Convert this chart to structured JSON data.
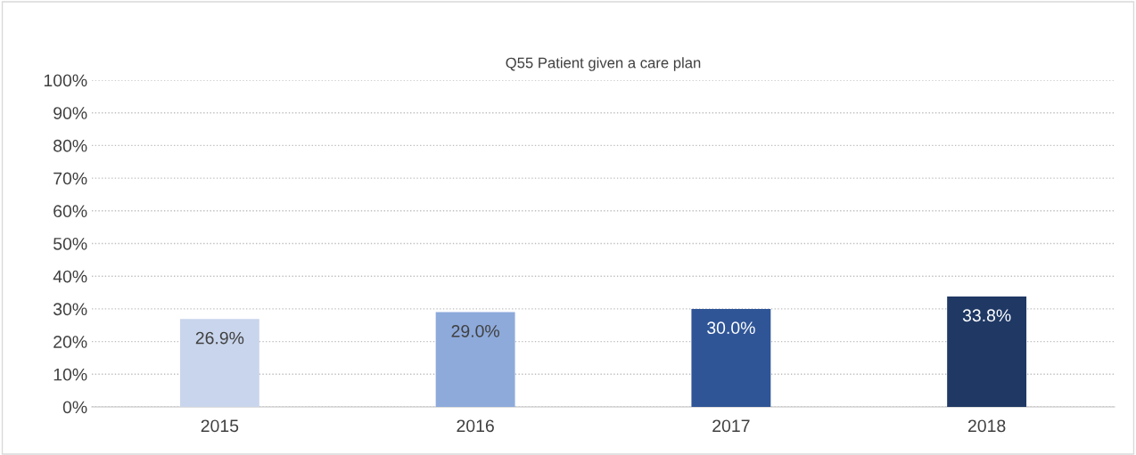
{
  "chart_data": {
    "type": "bar",
    "title": "Q55 Patient given a care plan",
    "categories": [
      "2015",
      "2016",
      "2017",
      "2018"
    ],
    "values": [
      26.9,
      29.0,
      30.0,
      33.8
    ],
    "colors": [
      "#c9d5ec",
      "#8eaadb",
      "#2f5597",
      "#1f3864"
    ],
    "value_labels": [
      "26.9%",
      "29.0%",
      "30.0%",
      "33.8%"
    ],
    "ylim": [
      0,
      100
    ],
    "yticks": [
      {
        "value": 0,
        "label": "0%"
      },
      {
        "value": 10,
        "label": "10%"
      },
      {
        "value": 20,
        "label": "20%"
      },
      {
        "value": 30,
        "label": "30%"
      },
      {
        "value": 40,
        "label": "40%"
      },
      {
        "value": 50,
        "label": "50%"
      },
      {
        "value": 60,
        "label": "60%"
      },
      {
        "value": 70,
        "label": "70%"
      },
      {
        "value": 80,
        "label": "80%"
      },
      {
        "value": 90,
        "label": "90%"
      },
      {
        "value": 100,
        "label": "100%"
      }
    ],
    "grid": "y"
  }
}
